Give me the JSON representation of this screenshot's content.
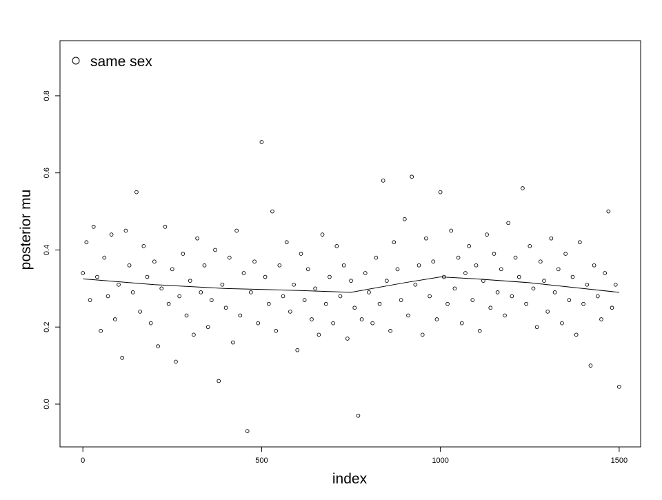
{
  "chart_data": {
    "type": "scatter",
    "xlabel": "index",
    "ylabel": "posterior mu",
    "xlim": [
      -64,
      1560
    ],
    "ylim": [
      -0.111,
      0.943
    ],
    "xticks": [
      0,
      500,
      1000,
      1500
    ],
    "yticks": [
      {
        "value": 0,
        "label": "0.0"
      },
      0.2,
      0.4,
      0.6,
      0.8
    ],
    "legend": "top-left",
    "series": [
      {
        "name": "same sex",
        "color": "#000000",
        "x": [
          0,
          10,
          20,
          30,
          40,
          50,
          60,
          70,
          80,
          90,
          100,
          110,
          120,
          130,
          140,
          150,
          160,
          170,
          180,
          190,
          200,
          210,
          220,
          230,
          240,
          250,
          260,
          270,
          280,
          290,
          300,
          310,
          320,
          330,
          340,
          350,
          360,
          370,
          380,
          390,
          400,
          410,
          420,
          430,
          440,
          450,
          460,
          470,
          480,
          490,
          500,
          510,
          520,
          530,
          540,
          550,
          560,
          570,
          580,
          590,
          600,
          610,
          620,
          630,
          640,
          650,
          660,
          670,
          680,
          690,
          700,
          710,
          720,
          730,
          740,
          750,
          760,
          770,
          780,
          790,
          800,
          810,
          820,
          830,
          840,
          850,
          860,
          870,
          880,
          890,
          900,
          910,
          920,
          930,
          940,
          950,
          960,
          970,
          980,
          990,
          1000,
          1010,
          1020,
          1030,
          1040,
          1050,
          1060,
          1070,
          1080,
          1090,
          1100,
          1110,
          1120,
          1130,
          1140,
          1150,
          1160,
          1170,
          1180,
          1190,
          1200,
          1210,
          1220,
          1230,
          1240,
          1250,
          1260,
          1270,
          1280,
          1290,
          1300,
          1310,
          1320,
          1330,
          1340,
          1350,
          1360,
          1370,
          1380,
          1390,
          1400,
          1410,
          1420,
          1430,
          1440,
          1450,
          1460,
          1470,
          1480,
          1490,
          1500
        ],
        "values": [
          0.34,
          0.42,
          0.27,
          0.46,
          0.33,
          0.19,
          0.38,
          0.28,
          0.44,
          0.22,
          0.31,
          0.12,
          0.45,
          0.36,
          0.29,
          0.55,
          0.24,
          0.41,
          0.33,
          0.21,
          0.37,
          0.15,
          0.3,
          0.46,
          0.26,
          0.35,
          0.11,
          0.28,
          0.39,
          0.23,
          0.32,
          0.18,
          0.43,
          0.29,
          0.36,
          0.2,
          0.27,
          0.4,
          0.06,
          0.31,
          0.25,
          0.38,
          0.16,
          0.45,
          0.23,
          0.34,
          -0.07,
          0.29,
          0.37,
          0.21,
          0.68,
          0.33,
          0.26,
          0.5,
          0.19,
          0.36,
          0.28,
          0.42,
          0.24,
          0.31,
          0.14,
          0.39,
          0.27,
          0.35,
          0.22,
          0.3,
          0.18,
          0.44,
          0.26,
          0.33,
          0.21,
          0.41,
          0.28,
          0.36,
          0.17,
          0.32,
          0.25,
          -0.03,
          0.22,
          0.34,
          0.29,
          0.21,
          0.38,
          0.26,
          0.58,
          0.32,
          0.19,
          0.42,
          0.35,
          0.27,
          0.48,
          0.23,
          0.59,
          0.31,
          0.36,
          0.18,
          0.43,
          0.28,
          0.37,
          0.22,
          0.55,
          0.33,
          0.26,
          0.45,
          0.3,
          0.38,
          0.21,
          0.34,
          0.41,
          0.27,
          0.36,
          0.19,
          0.32,
          0.44,
          0.25,
          0.39,
          0.29,
          0.35,
          0.23,
          0.47,
          0.28,
          0.38,
          0.33,
          0.56,
          0.26,
          0.41,
          0.3,
          0.2,
          0.37,
          0.32,
          0.24,
          0.43,
          0.29,
          0.35,
          0.21,
          0.39,
          0.27,
          0.33,
          0.18,
          0.42,
          0.26,
          0.31,
          0.1,
          0.36,
          0.28,
          0.22,
          0.34,
          0.5,
          0.25,
          0.31,
          0.045
        ]
      }
    ],
    "trend": {
      "color": "#000000",
      "x": [
        0,
        200,
        400,
        600,
        750,
        900,
        1000,
        1100,
        1250,
        1400,
        1500
      ],
      "values": [
        0.325,
        0.31,
        0.3,
        0.295,
        0.29,
        0.315,
        0.33,
        0.325,
        0.315,
        0.3,
        0.29
      ]
    }
  }
}
